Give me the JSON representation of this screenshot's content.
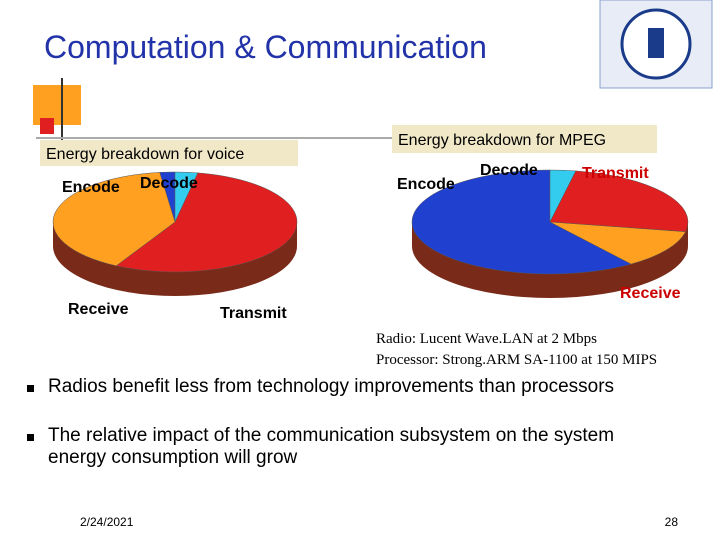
{
  "slide": {
    "title": "Computation & Communication",
    "notes": [
      "Radio: Lucent Wave.LAN at 2 Mbps",
      "Processor: Strong.ARM SA-1100 at 150 MIPS"
    ],
    "bullets": [
      "Radios benefit less from technology improvements than processors",
      "The relative impact of the communication subsystem on the system energy consumption will grow"
    ],
    "date": "2/24/2021",
    "page": "28"
  },
  "chart_data": [
    {
      "type": "pie",
      "title": "Energy breakdown for voice",
      "categories": [
        "Encode",
        "Decode",
        "Transmit",
        "Receive"
      ],
      "values": [
        2,
        3,
        55,
        40
      ],
      "colors": [
        "#2040d0",
        "#33ccee",
        "#e02020",
        "#ffa020"
      ]
    },
    {
      "type": "pie",
      "title": "Energy breakdown for MPEG",
      "categories": [
        "Encode",
        "Decode",
        "Transmit",
        "Receive"
      ],
      "values": [
        60,
        3,
        25,
        12
      ],
      "colors": [
        "#2040d0",
        "#33ccee",
        "#e02020",
        "#ffa020"
      ]
    }
  ]
}
